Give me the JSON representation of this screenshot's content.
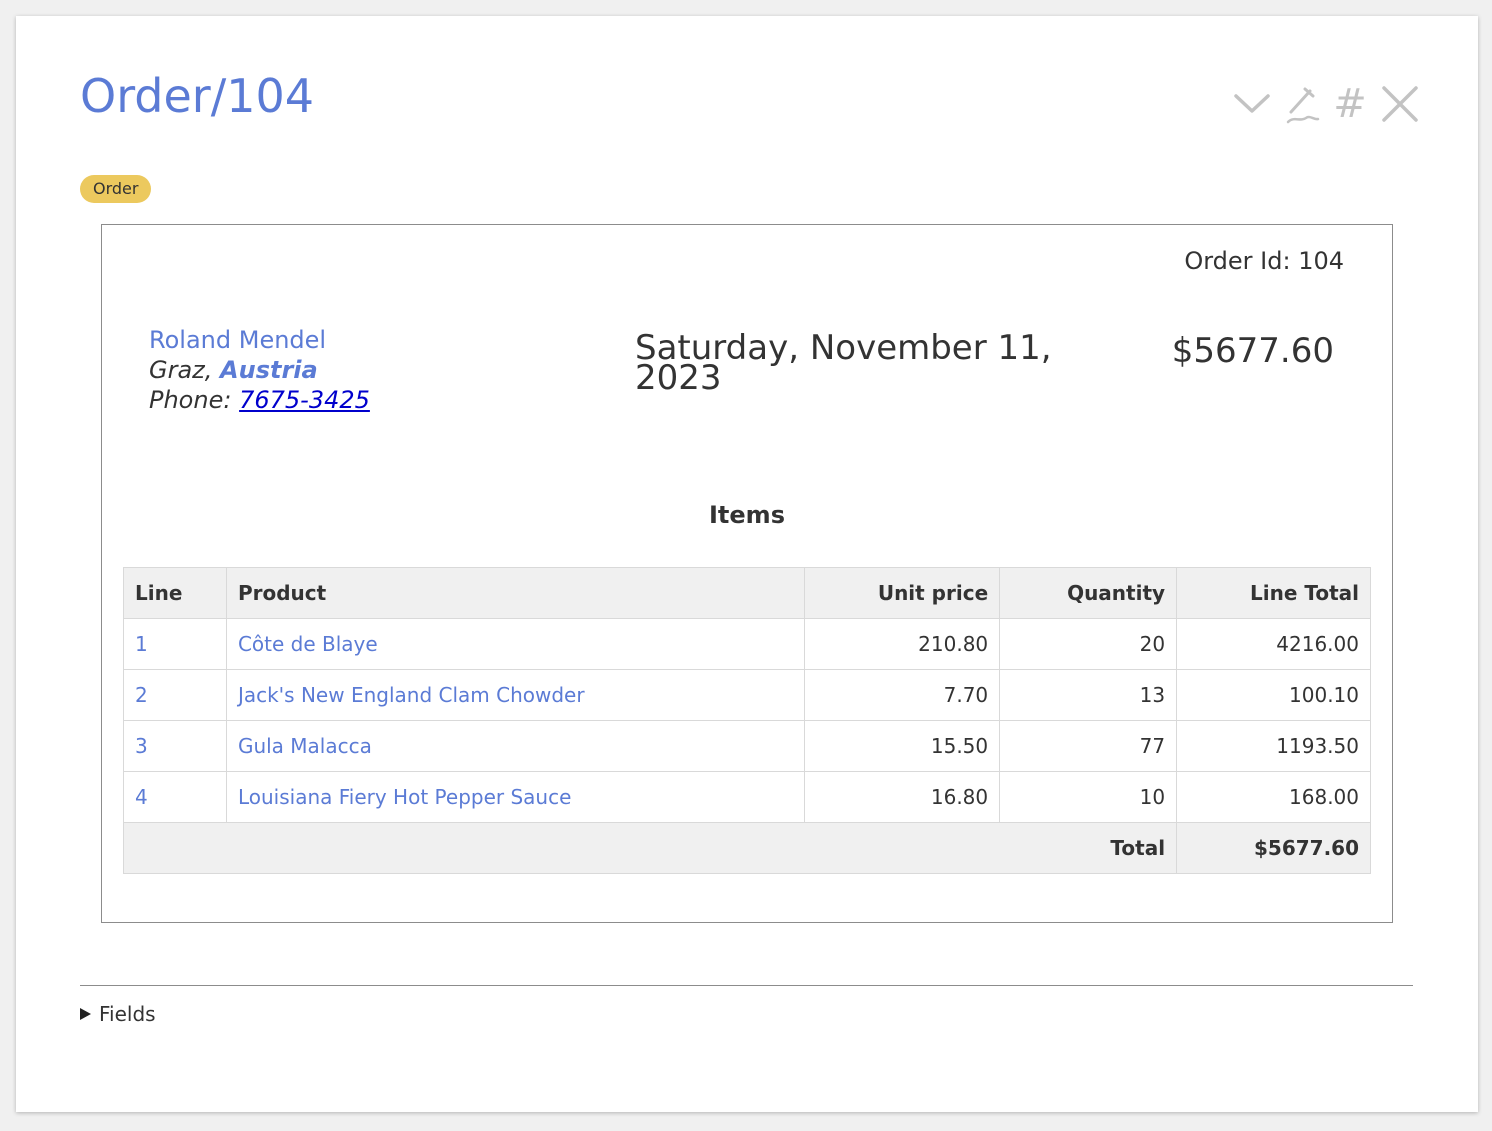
{
  "page": {
    "title": "Order/104",
    "tag": "Order"
  },
  "toolbar": {
    "icons": [
      "chevron-down-icon",
      "pen-icon",
      "hash-icon",
      "close-icon"
    ],
    "hash_glyph": "#",
    "icon_color": "#c3c3c3"
  },
  "order": {
    "id_label": "Order Id: 104",
    "customer": {
      "name": "Roland Mendel",
      "city": "Graz,",
      "country": "Austria",
      "phone_label": "Phone:",
      "phone": "7675-3425"
    },
    "date": "Saturday, November 11, 2023",
    "total": "$5677.60"
  },
  "items": {
    "heading": "Items",
    "columns": [
      "Line",
      "Product",
      "Unit price",
      "Quantity",
      "Line Total"
    ],
    "rows": [
      {
        "line": "1",
        "product": "Côte de Blaye",
        "unit_price": "210.80",
        "quantity": "20",
        "line_total": "4216.00"
      },
      {
        "line": "2",
        "product": "Jack's New England Clam Chowder",
        "unit_price": "7.70",
        "quantity": "13",
        "line_total": "100.10"
      },
      {
        "line": "3",
        "product": "Gula Malacca",
        "unit_price": "15.50",
        "quantity": "77",
        "line_total": "1193.50"
      },
      {
        "line": "4",
        "product": "Louisiana Fiery Hot Pepper Sauce",
        "unit_price": "16.80",
        "quantity": "10",
        "line_total": "168.00"
      }
    ],
    "footer": {
      "label": "Total",
      "value": "$5677.60"
    }
  },
  "fields": {
    "label": "Fields"
  },
  "colors": {
    "accent": "#5b7bd5",
    "tag": "#ecc95e",
    "link": "#0000cc"
  }
}
